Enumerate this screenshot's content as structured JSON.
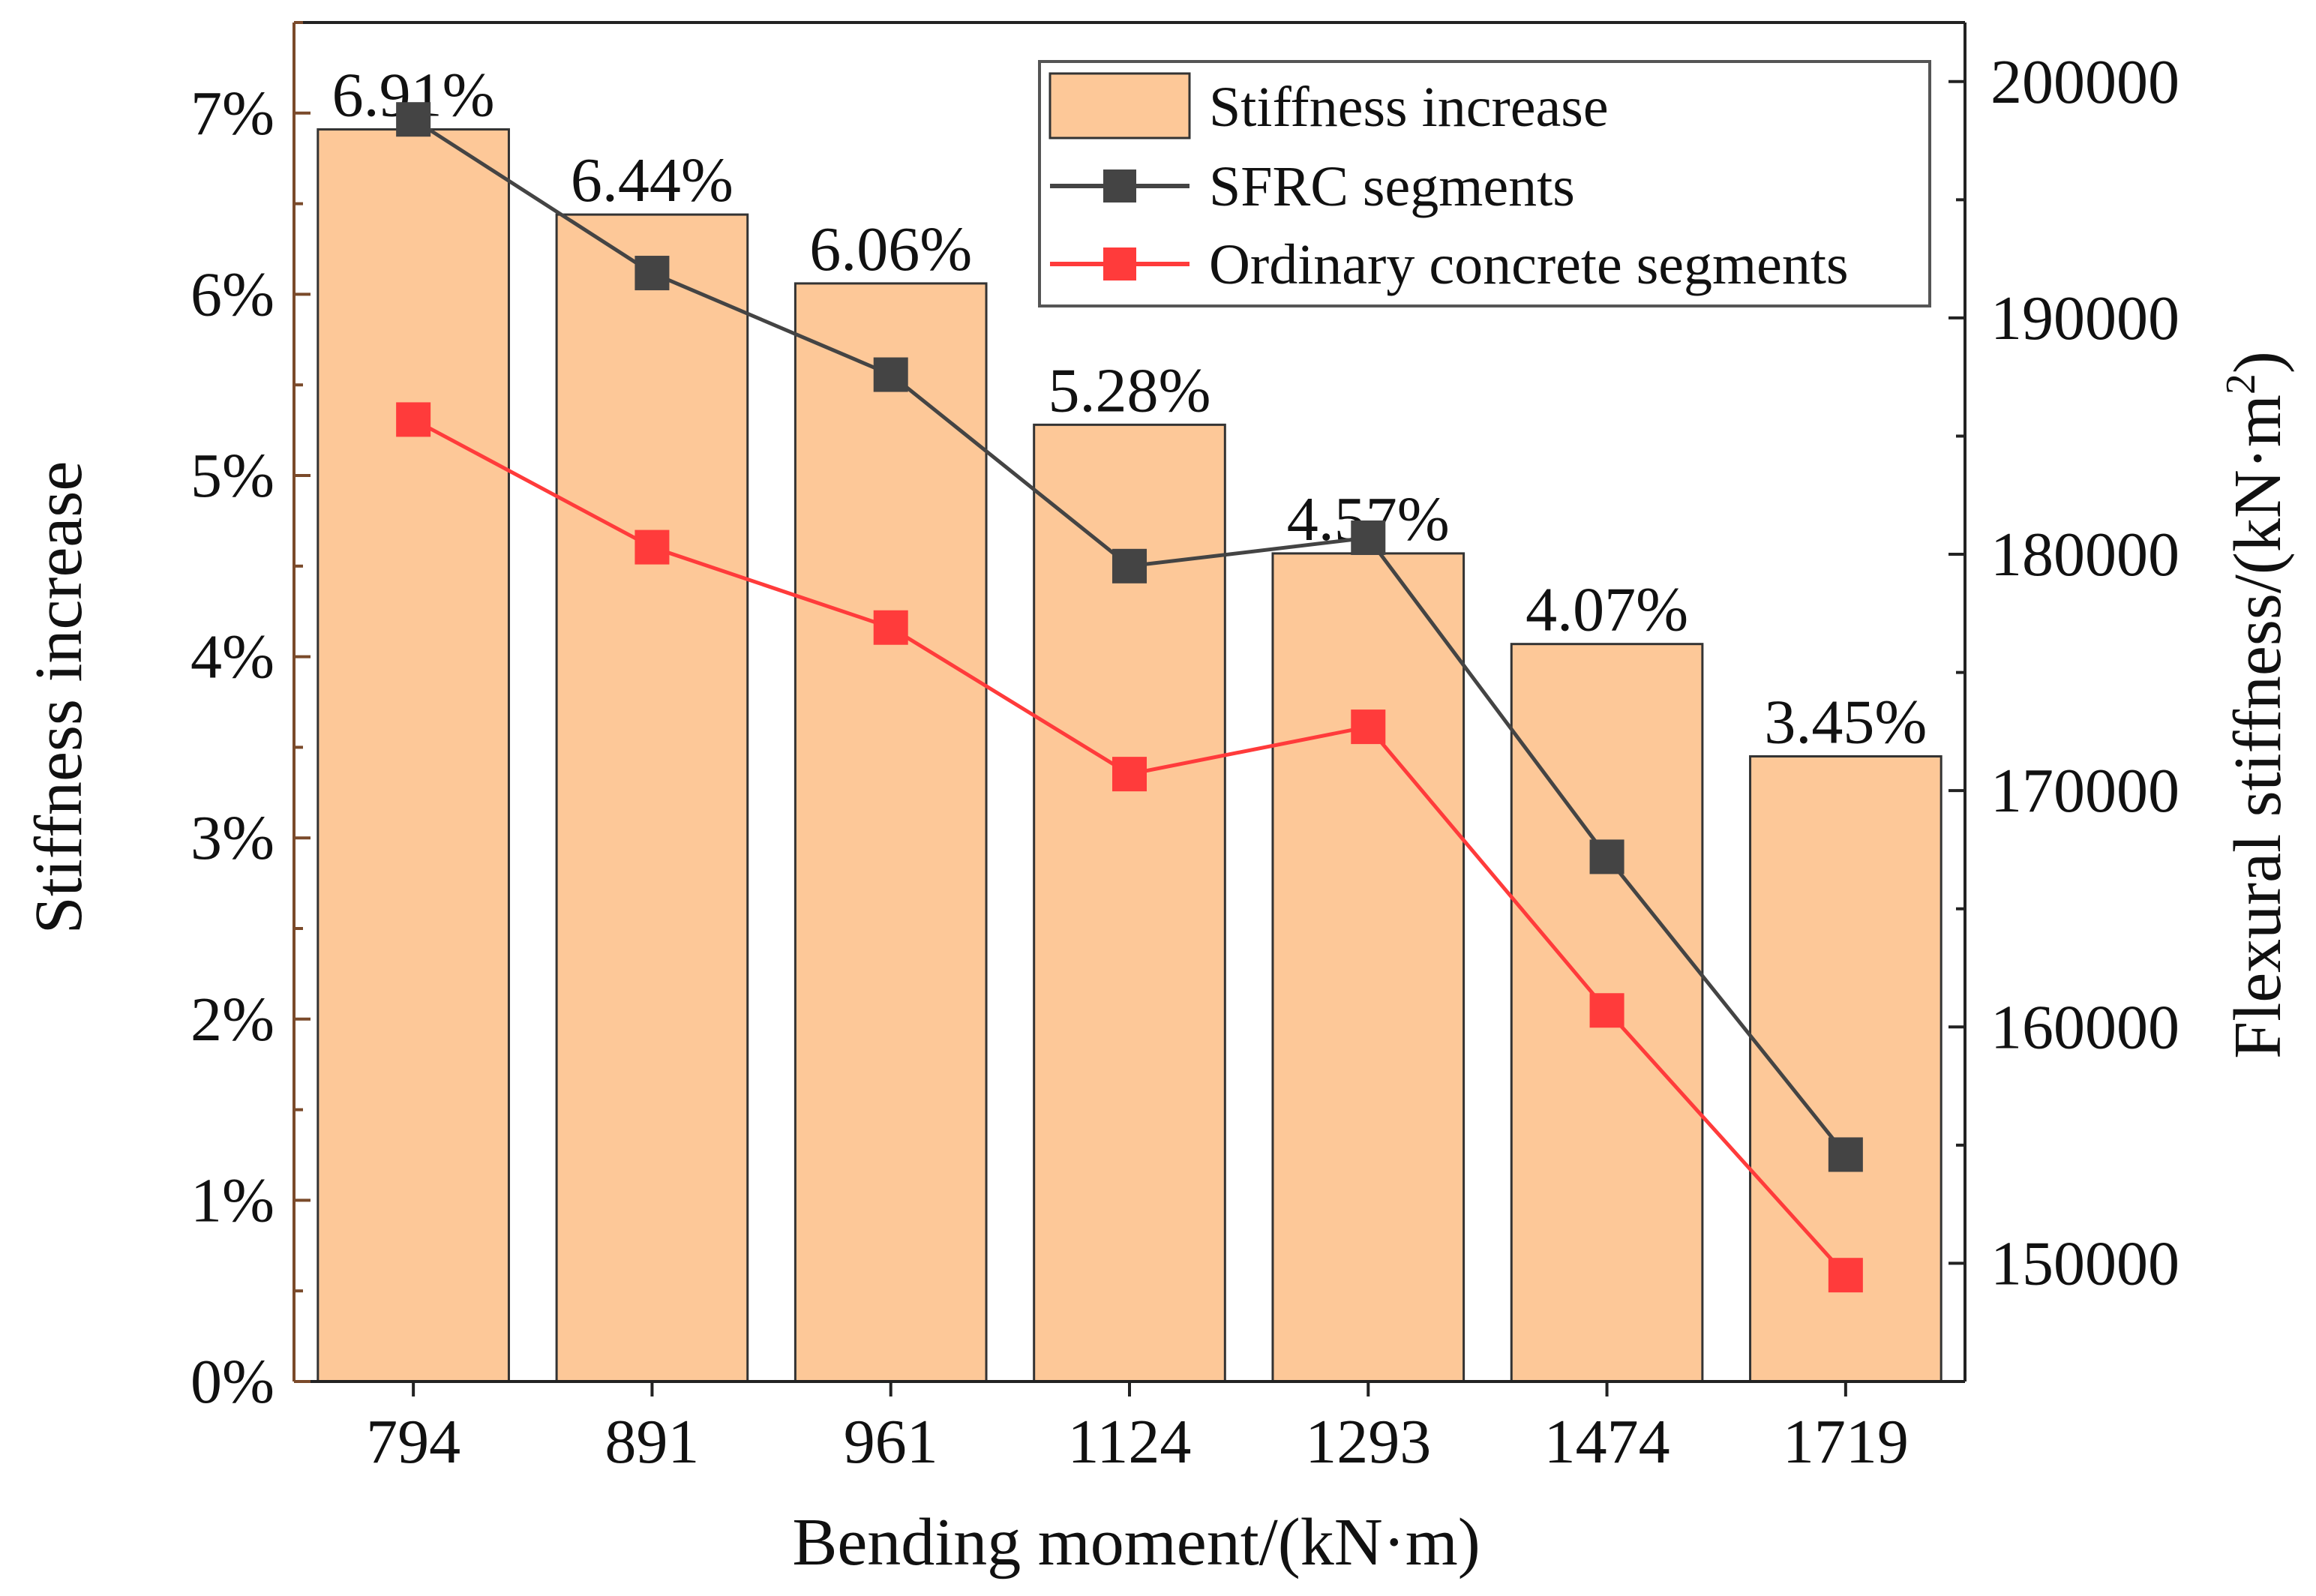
{
  "chart_data": {
    "type": "bar",
    "title": "",
    "xlabel": "Bending moment/(kN·m)",
    "ylabel": "Stiffness increase",
    "y2label_main": "Flexural stiffness/(kN·m",
    "y2label_sup": "2",
    "y2label_end": ")",
    "categories": [
      "794",
      "891",
      "961",
      "1124",
      "1293",
      "1474",
      "1719"
    ],
    "ylim": [
      0,
      7.5
    ],
    "y2lim": [
      145000,
      202500
    ],
    "yticks": [
      {
        "value": 0,
        "label": "0%"
      },
      {
        "value": 1,
        "label": "1%"
      },
      {
        "value": 2,
        "label": "2%"
      },
      {
        "value": 3,
        "label": "3%"
      },
      {
        "value": 4,
        "label": "4%"
      },
      {
        "value": 5,
        "label": "5%"
      },
      {
        "value": 6,
        "label": "6%"
      },
      {
        "value": 7,
        "label": "7%"
      }
    ],
    "y2ticks": [
      {
        "value": 150000,
        "label": "150000"
      },
      {
        "value": 160000,
        "label": "160000"
      },
      {
        "value": 170000,
        "label": "170000"
      },
      {
        "value": 180000,
        "label": "180000"
      },
      {
        "value": 190000,
        "label": "190000"
      },
      {
        "value": 200000,
        "label": "200000"
      }
    ],
    "bars": {
      "name": "Stiffness increase",
      "axis": "left",
      "color": "#FDC898",
      "edge_color": "#333333",
      "values": [
        6.91,
        6.44,
        6.06,
        5.28,
        4.57,
        4.07,
        3.45
      ],
      "labels": [
        "6.91%",
        "6.44%",
        "6.06%",
        "5.28%",
        "4.57%",
        "4.07%",
        "3.45%"
      ]
    },
    "series": [
      {
        "name": "SFRC segments",
        "type": "line",
        "axis": "right",
        "color": "#444444",
        "marker": "square",
        "values": [
          198400,
          191900,
          187600,
          179500,
          180700,
          167200,
          154600
        ]
      },
      {
        "name": "Ordinary concrete segments",
        "type": "line",
        "axis": "right",
        "color": "#FF3B3B",
        "marker": "square",
        "values": [
          185700,
          180300,
          176900,
          170700,
          172700,
          160700,
          149500
        ]
      }
    ],
    "legend": {
      "position": "top-right",
      "items": [
        "Stiffness increase",
        "SFRC segments",
        "Ordinary concrete segments"
      ]
    },
    "grid": false
  }
}
